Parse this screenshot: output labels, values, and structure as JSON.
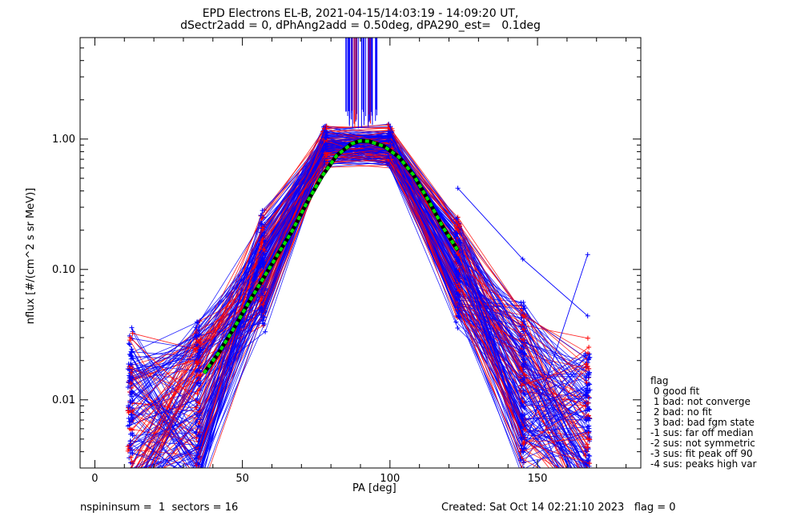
{
  "title_line1": "EPD Electrons EL-B, 2021-04-15/14:03:19 - 14:09:20 UT,",
  "title_line2": "dSectr2add = 0, dPhAng2add = 0.50deg, dPA290_est=   0.1deg",
  "footer_left": "nspininsum =  1  sectors = 16",
  "footer_right": "Created: Sat Oct 14 02:21:10 2023   flag = 0",
  "legend": {
    "title": "flag",
    "items": [
      " 0 good fit",
      " 1 bad: not converge",
      " 2 bad: no fit",
      " 3 bad: bad fgm state",
      "-1 sus: far off median",
      "-2 sus: not symmetric",
      "-3 sus: fit peak off 90",
      "-4 sus: peaks high var"
    ]
  },
  "chart_data": {
    "type": "line",
    "xlabel": "PA [deg]",
    "ylabel": "nflux [#/(cm^2 s sr MeV)]",
    "xlim": [
      -5,
      185
    ],
    "ylim": [
      0.003,
      6.0
    ],
    "yscale": "log",
    "x_ticks": [
      0,
      50,
      100,
      150
    ],
    "y_ticks": [
      0.01,
      0.1,
      1.0
    ],
    "y_tick_labels": [
      "0.01",
      "0.10",
      "1.00"
    ],
    "colors": {
      "series_a": "#0000ff",
      "series_b": "#ff0000",
      "fit": "#00e000"
    },
    "pa_bins": [
      12,
      35,
      57,
      78,
      100,
      123,
      145,
      167
    ],
    "median_profile": [
      0.006,
      0.009,
      0.1,
      0.85,
      0.85,
      0.1,
      0.012,
      0.005
    ],
    "fit": {
      "x": [
        37,
        42,
        47,
        52,
        57,
        62,
        67,
        72,
        77,
        82,
        87,
        90,
        93,
        98,
        103,
        108,
        113,
        118,
        123
      ],
      "y": [
        0.016,
        0.023,
        0.035,
        0.055,
        0.085,
        0.13,
        0.2,
        0.33,
        0.52,
        0.75,
        0.92,
        0.97,
        0.96,
        0.88,
        0.73,
        0.53,
        0.34,
        0.21,
        0.14
      ]
    },
    "outliers": [
      {
        "x": [
          12,
          35
        ],
        "y": [
          0.03,
          0.0095
        ]
      },
      {
        "x": [
          123,
          145,
          167
        ],
        "y": [
          0.42,
          0.12,
          0.044
        ]
      },
      {
        "x": [
          145,
          167
        ],
        "y": [
          0.004,
          0.13
        ]
      },
      {
        "x": [
          100
        ],
        "y": [
          1.13
        ]
      }
    ]
  }
}
